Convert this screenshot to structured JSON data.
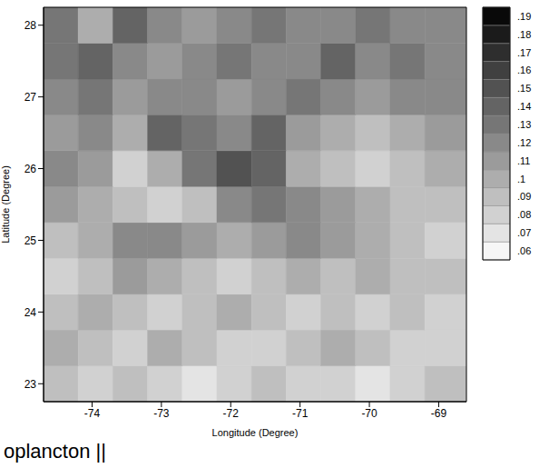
{
  "chart_data": {
    "type": "heatmap",
    "x_label": "Longitude (Degree)",
    "y_label": "Latitude (Degree)",
    "annotations": [
      "oplancton ||"
    ],
    "xlim": [
      -74.7,
      -68.6
    ],
    "xticks": [
      -74,
      -73,
      -72,
      -71,
      -70,
      -69
    ],
    "ylim": [
      22.75,
      28.25
    ],
    "yticks": [
      23,
      24,
      25,
      26,
      27,
      28
    ],
    "cells": {
      "x": [
        -74.7,
        -74.2,
        -73.7,
        -73.2,
        -72.7,
        -72.2,
        -71.7,
        -71.2,
        -70.7,
        -70.2,
        -69.7,
        -69.2,
        -68.6
      ],
      "y": [
        22.75,
        23.25,
        23.75,
        24.25,
        24.75,
        25.25,
        25.75,
        26.25,
        26.75,
        27.25,
        27.75,
        28.25
      ],
      "values": [
        [
          0.09,
          0.08,
          0.09,
          0.08,
          0.07,
          0.08,
          0.09,
          0.08,
          0.08,
          0.07,
          0.08,
          0.09
        ],
        [
          0.1,
          0.09,
          0.08,
          0.1,
          0.09,
          0.08,
          0.08,
          0.09,
          0.1,
          0.09,
          0.08,
          0.08
        ],
        [
          0.09,
          0.1,
          0.09,
          0.08,
          0.09,
          0.1,
          0.09,
          0.08,
          0.09,
          0.08,
          0.09,
          0.08
        ],
        [
          0.08,
          0.09,
          0.11,
          0.1,
          0.09,
          0.08,
          0.09,
          0.1,
          0.09,
          0.1,
          0.09,
          0.09
        ],
        [
          0.09,
          0.1,
          0.12,
          0.12,
          0.11,
          0.1,
          0.11,
          0.12,
          0.11,
          0.1,
          0.09,
          0.08
        ],
        [
          0.11,
          0.1,
          0.09,
          0.08,
          0.09,
          0.12,
          0.13,
          0.12,
          0.11,
          0.1,
          0.09,
          0.09
        ],
        [
          0.12,
          0.11,
          0.08,
          0.1,
          0.13,
          0.15,
          0.14,
          0.1,
          0.09,
          0.08,
          0.09,
          0.1
        ],
        [
          0.11,
          0.12,
          0.1,
          0.14,
          0.13,
          0.12,
          0.14,
          0.11,
          0.1,
          0.09,
          0.1,
          0.11
        ],
        [
          0.12,
          0.13,
          0.11,
          0.12,
          0.12,
          0.11,
          0.12,
          0.13,
          0.12,
          0.11,
          0.12,
          0.12
        ],
        [
          0.13,
          0.14,
          0.12,
          0.11,
          0.12,
          0.13,
          0.12,
          0.12,
          0.14,
          0.12,
          0.13,
          0.12
        ],
        [
          0.13,
          0.1,
          0.14,
          0.12,
          0.11,
          0.12,
          0.13,
          0.12,
          0.12,
          0.13,
          0.12,
          0.12
        ]
      ]
    },
    "colorbar": {
      "range": [
        0.055,
        0.195
      ],
      "ticks": [
        {
          "value": 0.06,
          "label": ".06"
        },
        {
          "value": 0.07,
          "label": ".07"
        },
        {
          "value": 0.08,
          "label": ".08"
        },
        {
          "value": 0.09,
          "label": ".09"
        },
        {
          "value": 0.1,
          "label": ".1"
        },
        {
          "value": 0.11,
          "label": ".11"
        },
        {
          "value": 0.12,
          "label": ".12"
        },
        {
          "value": 0.13,
          "label": ".13"
        },
        {
          "value": 0.14,
          "label": ".14"
        },
        {
          "value": 0.15,
          "label": ".15"
        },
        {
          "value": 0.16,
          "label": ".16"
        },
        {
          "value": 0.17,
          "label": ".17"
        },
        {
          "value": 0.18,
          "label": ".18"
        },
        {
          "value": 0.19,
          "label": ".19"
        }
      ]
    }
  }
}
